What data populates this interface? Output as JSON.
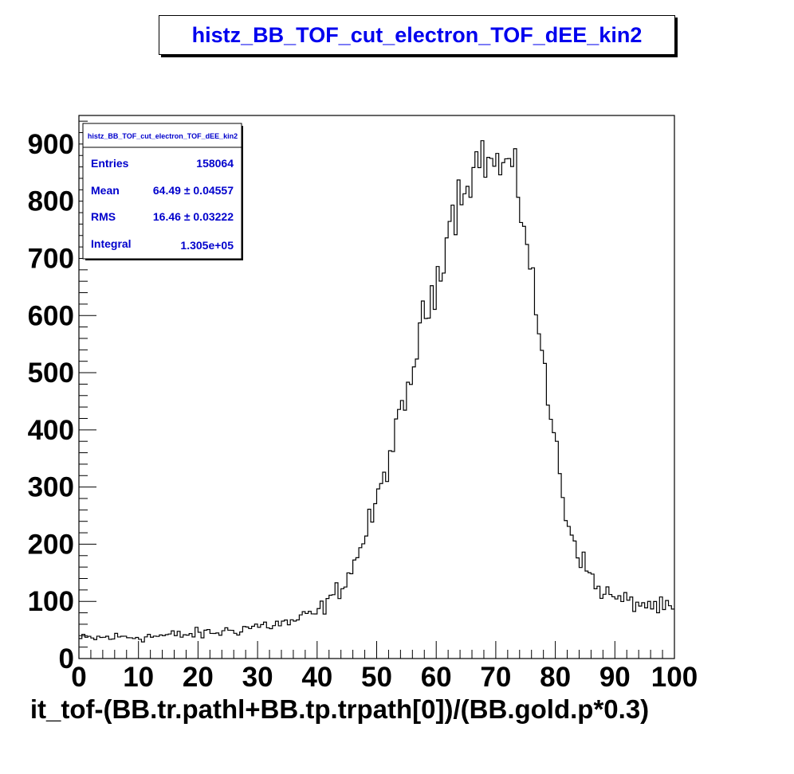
{
  "colors": {
    "title": "#0000ee",
    "stats_text": "#0000cc",
    "line": "#000000",
    "frame": "#000000",
    "background": "#ffffff"
  },
  "chart_data": {
    "type": "histogram",
    "title": "histz_BB_TOF_cut_electron_TOF_dEE_kin2",
    "xlabel": "it_tof-(BB.tr.pathl+BB.tp.trpath[0])/(BB.gold.p*0.3)",
    "ylabel": "",
    "xlim": [
      0,
      100
    ],
    "ylim": [
      0,
      950
    ],
    "bin_width": 0.5,
    "x_ticks": [
      "0",
      "10",
      "20",
      "30",
      "40",
      "50",
      "60",
      "70",
      "80",
      "90",
      "100"
    ],
    "y_ticks": [
      "0",
      "100",
      "200",
      "300",
      "400",
      "500",
      "600",
      "700",
      "800",
      "900"
    ],
    "grid": false,
    "legend": "none",
    "stats_box": {
      "title": "histz_BB_TOF_cut_electron_TOF_dEE_kin2",
      "placement": "top-left",
      "rows": [
        {
          "label": "Entries",
          "value": "158064"
        },
        {
          "label": "Mean",
          "value": "64.49 ± 0.04557"
        },
        {
          "label": "RMS",
          "value": "16.46 ± 0.03222"
        },
        {
          "label": "Integral",
          "value": "1.305e+05"
        }
      ]
    },
    "profile": {
      "x": [
        0,
        5,
        10,
        15,
        20,
        25,
        30,
        35,
        40,
        42,
        45,
        47,
        50,
        52,
        55,
        57,
        60,
        62,
        65,
        67,
        68,
        70,
        72,
        73,
        75,
        77,
        78,
        80,
        82,
        85,
        87,
        90,
        92,
        95,
        100
      ],
      "y": [
        34,
        37,
        38,
        40,
        43,
        48,
        57,
        62,
        80,
        100,
        140,
        185,
        270,
        350,
        450,
        560,
        660,
        760,
        840,
        870,
        880,
        860,
        865,
        840,
        760,
        600,
        500,
        380,
        240,
        160,
        125,
        105,
        100,
        95,
        85
      ]
    }
  }
}
